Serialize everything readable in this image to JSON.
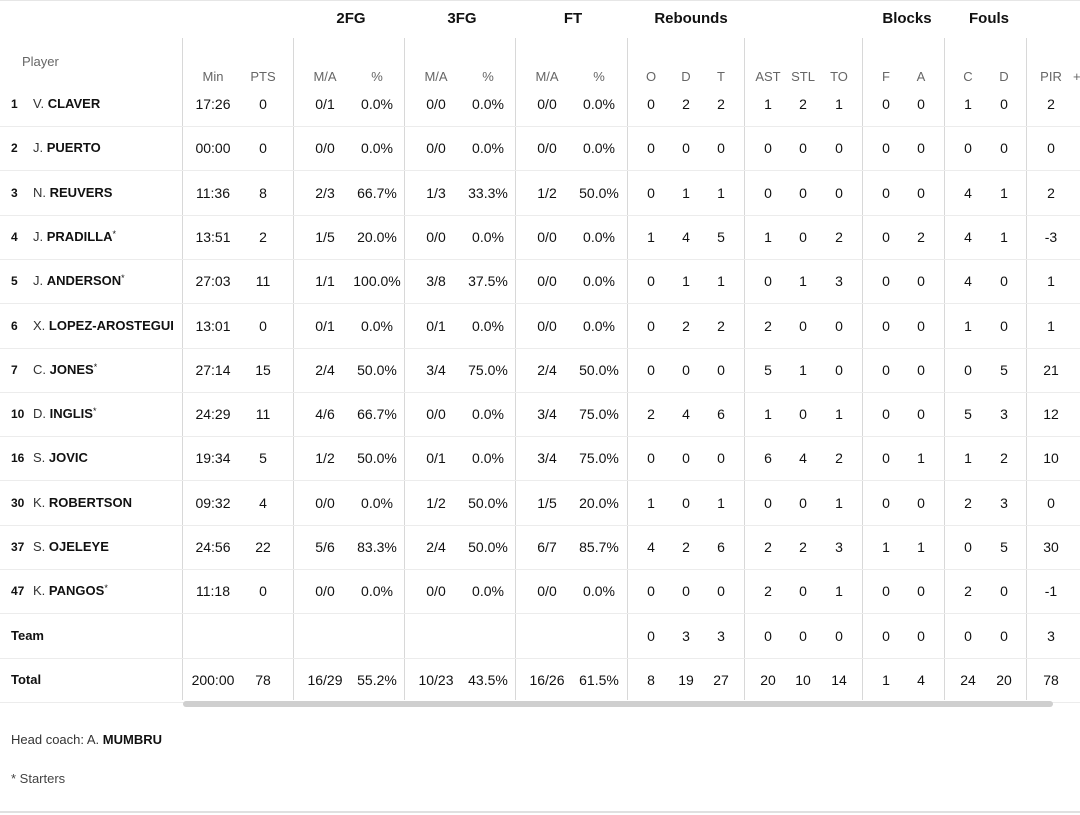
{
  "groups": {
    "fg2": "2FG",
    "fg3": "3FG",
    "ft": "FT",
    "rebounds": "Rebounds",
    "blocks": "Blocks",
    "fouls": "Fouls"
  },
  "headers": {
    "player": "Player",
    "min": "Min",
    "pts": "PTS",
    "fg2_ma": "M/A",
    "fg2_pct": "%",
    "fg3_ma": "M/A",
    "fg3_pct": "%",
    "ft_ma": "M/A",
    "ft_pct": "%",
    "reb_o": "O",
    "reb_d": "D",
    "reb_t": "T",
    "ast": "AST",
    "stl": "STL",
    "to": "TO",
    "blk_f": "F",
    "blk_a": "A",
    "foul_c": "C",
    "foul_d": "D",
    "pir": "PIR",
    "cut": "+"
  },
  "players": [
    {
      "num": "1",
      "ini": "V.",
      "last": "CLAVER",
      "starter": "",
      "min": "17:26",
      "pts": "0",
      "fg2_ma": "0/1",
      "fg2_pct": "0.0%",
      "fg3_ma": "0/0",
      "fg3_pct": "0.0%",
      "ft_ma": "0/0",
      "ft_pct": "0.0%",
      "o": "0",
      "d": "2",
      "t": "2",
      "ast": "1",
      "stl": "2",
      "to": "1",
      "bf": "0",
      "ba": "0",
      "fc": "1",
      "fd": "0",
      "pir": "2"
    },
    {
      "num": "2",
      "ini": "J.",
      "last": "PUERTO",
      "starter": "",
      "min": "00:00",
      "pts": "0",
      "fg2_ma": "0/0",
      "fg2_pct": "0.0%",
      "fg3_ma": "0/0",
      "fg3_pct": "0.0%",
      "ft_ma": "0/0",
      "ft_pct": "0.0%",
      "o": "0",
      "d": "0",
      "t": "0",
      "ast": "0",
      "stl": "0",
      "to": "0",
      "bf": "0",
      "ba": "0",
      "fc": "0",
      "fd": "0",
      "pir": "0"
    },
    {
      "num": "3",
      "ini": "N.",
      "last": "REUVERS",
      "starter": "",
      "min": "11:36",
      "pts": "8",
      "fg2_ma": "2/3",
      "fg2_pct": "66.7%",
      "fg3_ma": "1/3",
      "fg3_pct": "33.3%",
      "ft_ma": "1/2",
      "ft_pct": "50.0%",
      "o": "0",
      "d": "1",
      "t": "1",
      "ast": "0",
      "stl": "0",
      "to": "0",
      "bf": "0",
      "ba": "0",
      "fc": "4",
      "fd": "1",
      "pir": "2"
    },
    {
      "num": "4",
      "ini": "J.",
      "last": "PRADILLA",
      "starter": "*",
      "min": "13:51",
      "pts": "2",
      "fg2_ma": "1/5",
      "fg2_pct": "20.0%",
      "fg3_ma": "0/0",
      "fg3_pct": "0.0%",
      "ft_ma": "0/0",
      "ft_pct": "0.0%",
      "o": "1",
      "d": "4",
      "t": "5",
      "ast": "1",
      "stl": "0",
      "to": "2",
      "bf": "0",
      "ba": "2",
      "fc": "4",
      "fd": "1",
      "pir": "-3"
    },
    {
      "num": "5",
      "ini": "J.",
      "last": "ANDERSON",
      "starter": "*",
      "min": "27:03",
      "pts": "11",
      "fg2_ma": "1/1",
      "fg2_pct": "100.0%",
      "fg3_ma": "3/8",
      "fg3_pct": "37.5%",
      "ft_ma": "0/0",
      "ft_pct": "0.0%",
      "o": "0",
      "d": "1",
      "t": "1",
      "ast": "0",
      "stl": "1",
      "to": "3",
      "bf": "0",
      "ba": "0",
      "fc": "4",
      "fd": "0",
      "pir": "1"
    },
    {
      "num": "6",
      "ini": "X.",
      "last": "LOPEZ-AROSTEGUI",
      "starter": "",
      "min": "13:01",
      "pts": "0",
      "fg2_ma": "0/1",
      "fg2_pct": "0.0%",
      "fg3_ma": "0/1",
      "fg3_pct": "0.0%",
      "ft_ma": "0/0",
      "ft_pct": "0.0%",
      "o": "0",
      "d": "2",
      "t": "2",
      "ast": "2",
      "stl": "0",
      "to": "0",
      "bf": "0",
      "ba": "0",
      "fc": "1",
      "fd": "0",
      "pir": "1"
    },
    {
      "num": "7",
      "ini": "C.",
      "last": "JONES",
      "starter": "*",
      "min": "27:14",
      "pts": "15",
      "fg2_ma": "2/4",
      "fg2_pct": "50.0%",
      "fg3_ma": "3/4",
      "fg3_pct": "75.0%",
      "ft_ma": "2/4",
      "ft_pct": "50.0%",
      "o": "0",
      "d": "0",
      "t": "0",
      "ast": "5",
      "stl": "1",
      "to": "0",
      "bf": "0",
      "ba": "0",
      "fc": "0",
      "fd": "5",
      "pir": "21"
    },
    {
      "num": "10",
      "ini": "D.",
      "last": "INGLIS",
      "starter": "*",
      "min": "24:29",
      "pts": "11",
      "fg2_ma": "4/6",
      "fg2_pct": "66.7%",
      "fg3_ma": "0/0",
      "fg3_pct": "0.0%",
      "ft_ma": "3/4",
      "ft_pct": "75.0%",
      "o": "2",
      "d": "4",
      "t": "6",
      "ast": "1",
      "stl": "0",
      "to": "1",
      "bf": "0",
      "ba": "0",
      "fc": "5",
      "fd": "3",
      "pir": "12"
    },
    {
      "num": "16",
      "ini": "S.",
      "last": "JOVIC",
      "starter": "",
      "min": "19:34",
      "pts": "5",
      "fg2_ma": "1/2",
      "fg2_pct": "50.0%",
      "fg3_ma": "0/1",
      "fg3_pct": "0.0%",
      "ft_ma": "3/4",
      "ft_pct": "75.0%",
      "o": "0",
      "d": "0",
      "t": "0",
      "ast": "6",
      "stl": "4",
      "to": "2",
      "bf": "0",
      "ba": "1",
      "fc": "1",
      "fd": "2",
      "pir": "10"
    },
    {
      "num": "30",
      "ini": "K.",
      "last": "ROBERTSON",
      "starter": "",
      "min": "09:32",
      "pts": "4",
      "fg2_ma": "0/0",
      "fg2_pct": "0.0%",
      "fg3_ma": "1/2",
      "fg3_pct": "50.0%",
      "ft_ma": "1/5",
      "ft_pct": "20.0%",
      "o": "1",
      "d": "0",
      "t": "1",
      "ast": "0",
      "stl": "0",
      "to": "1",
      "bf": "0",
      "ba": "0",
      "fc": "2",
      "fd": "3",
      "pir": "0"
    },
    {
      "num": "37",
      "ini": "S.",
      "last": "OJELEYE",
      "starter": "",
      "min": "24:56",
      "pts": "22",
      "fg2_ma": "5/6",
      "fg2_pct": "83.3%",
      "fg3_ma": "2/4",
      "fg3_pct": "50.0%",
      "ft_ma": "6/7",
      "ft_pct": "85.7%",
      "o": "4",
      "d": "2",
      "t": "6",
      "ast": "2",
      "stl": "2",
      "to": "3",
      "bf": "1",
      "ba": "1",
      "fc": "0",
      "fd": "5",
      "pir": "30"
    },
    {
      "num": "47",
      "ini": "K.",
      "last": "PANGOS",
      "starter": "*",
      "min": "11:18",
      "pts": "0",
      "fg2_ma": "0/0",
      "fg2_pct": "0.0%",
      "fg3_ma": "0/0",
      "fg3_pct": "0.0%",
      "ft_ma": "0/0",
      "ft_pct": "0.0%",
      "o": "0",
      "d": "0",
      "t": "0",
      "ast": "2",
      "stl": "0",
      "to": "1",
      "bf": "0",
      "ba": "0",
      "fc": "2",
      "fd": "0",
      "pir": "-1"
    }
  ],
  "team": {
    "label": "Team",
    "min": "",
    "pts": "",
    "fg2_ma": "",
    "fg2_pct": "",
    "fg3_ma": "",
    "fg3_pct": "",
    "ft_ma": "",
    "ft_pct": "",
    "o": "0",
    "d": "3",
    "t": "3",
    "ast": "0",
    "stl": "0",
    "to": "0",
    "bf": "0",
    "ba": "0",
    "fc": "0",
    "fd": "0",
    "pir": "3"
  },
  "total": {
    "label": "Total",
    "min": "200:00",
    "pts": "78",
    "fg2_ma": "16/29",
    "fg2_pct": "55.2%",
    "fg3_ma": "10/23",
    "fg3_pct": "43.5%",
    "ft_ma": "16/26",
    "ft_pct": "61.5%",
    "o": "8",
    "d": "19",
    "t": "27",
    "ast": "20",
    "stl": "10",
    "to": "14",
    "bf": "1",
    "ba": "4",
    "fc": "24",
    "fd": "20",
    "pir": "78"
  },
  "footer": {
    "coach_prefix": "Head coach: A.",
    "coach_last": "MUMBRU",
    "starters_note": "* Starters"
  }
}
